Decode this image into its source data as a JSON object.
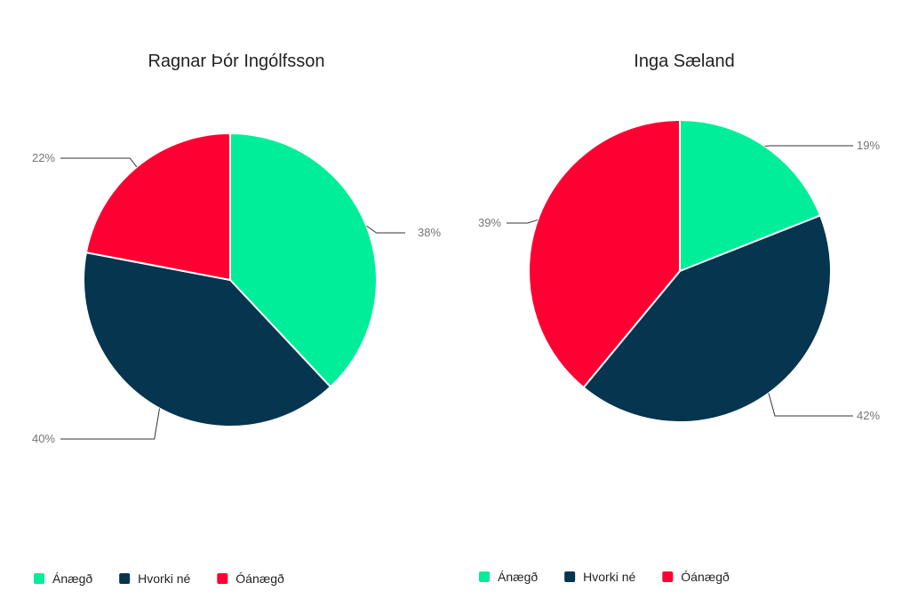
{
  "chart_data": [
    {
      "type": "pie",
      "title": "Ragnar Þór Ingólfsson",
      "categories": [
        "Ánægð",
        "Hvorki né",
        "Óánægð"
      ],
      "values": [
        38,
        40,
        22
      ],
      "labels": [
        "38%",
        "40%",
        "22%"
      ],
      "colors": [
        "#00EE99",
        "#05354F",
        "#FF0033"
      ],
      "legend": "bottom-left"
    },
    {
      "type": "pie",
      "title": "Inga Sæland",
      "categories": [
        "Ánægð",
        "Hvorki né",
        "Óánægð"
      ],
      "values": [
        19,
        42,
        39
      ],
      "labels": [
        "19%",
        "42%",
        "39%"
      ],
      "colors": [
        "#00EE99",
        "#05354F",
        "#FF0033"
      ],
      "legend": "bottom-center"
    }
  ]
}
